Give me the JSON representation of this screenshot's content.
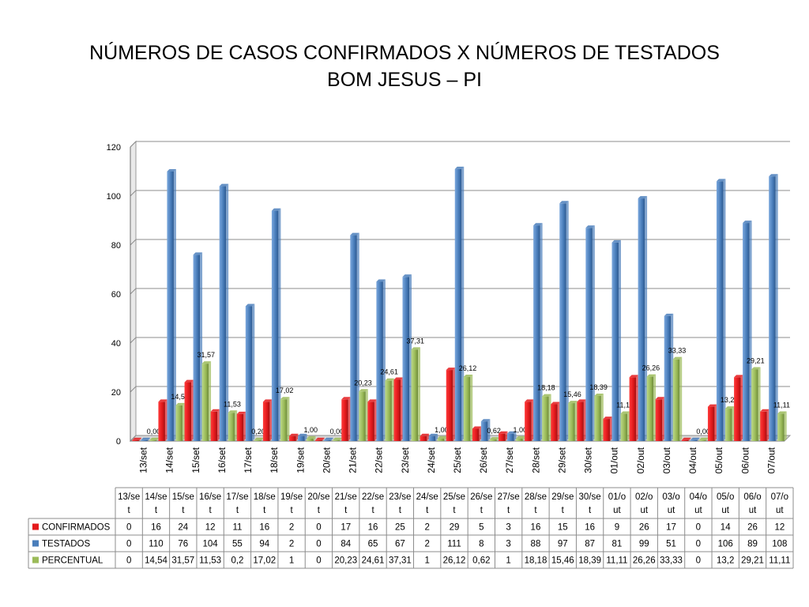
{
  "header": {
    "title_line1": "NÚMEROS DE CASOS CONFIRMADOS X NÚMEROS DE TESTADOS",
    "title_line2": "BOM JESUS – PI"
  },
  "chart_data": {
    "type": "bar",
    "title": "NÚMEROS DE CASOS CONFIRMADOS X NÚMEROS DE TESTADOS BOM JESUS – PI",
    "xlabel": "",
    "ylabel": "",
    "ylim": [
      0,
      120
    ],
    "yticks": [
      0,
      20,
      40,
      60,
      80,
      100,
      120
    ],
    "grid": true,
    "legend": "data-table",
    "categories": [
      "13/set",
      "14/set",
      "15/set",
      "16/set",
      "17/set",
      "18/set",
      "19/set",
      "20/set",
      "21/set",
      "22/set",
      "23/set",
      "24/set",
      "25/set",
      "26/set",
      "27/set",
      "28/set",
      "29/set",
      "30/set",
      "01/out",
      "02/out",
      "03/out",
      "04/out",
      "05/out",
      "06/out",
      "07/out"
    ],
    "table_headers": [
      [
        "13/se",
        "t"
      ],
      [
        "14/se",
        "t"
      ],
      [
        "15/se",
        "t"
      ],
      [
        "16/se",
        "t"
      ],
      [
        "17/se",
        "t"
      ],
      [
        "18/se",
        "t"
      ],
      [
        "19/se",
        "t"
      ],
      [
        "20/se",
        "t"
      ],
      [
        "21/se",
        "t"
      ],
      [
        "22/se",
        "t"
      ],
      [
        "23/se",
        "t"
      ],
      [
        "24/se",
        "t"
      ],
      [
        "25/se",
        "t"
      ],
      [
        "26/se",
        "t"
      ],
      [
        "27/se",
        "t"
      ],
      [
        "28/se",
        "t"
      ],
      [
        "29/se",
        "t"
      ],
      [
        "30/se",
        "t"
      ],
      [
        "01/o",
        "ut"
      ],
      [
        "02/o",
        "ut"
      ],
      [
        "03/o",
        "ut"
      ],
      [
        "04/o",
        "ut"
      ],
      [
        "05/o",
        "ut"
      ],
      [
        "06/o",
        "ut"
      ],
      [
        "07/o",
        "ut"
      ]
    ],
    "series": [
      {
        "name": "CONFIRMADOS",
        "color": "#e41a1c",
        "values": [
          0,
          16,
          24,
          12,
          11,
          16,
          2,
          0,
          17,
          16,
          25,
          2,
          29,
          5,
          3,
          16,
          15,
          16,
          9,
          26,
          17,
          0,
          14,
          26,
          12
        ],
        "table_values": [
          "0",
          "16",
          "24",
          "12",
          "11",
          "16",
          "2",
          "0",
          "17",
          "16",
          "25",
          "2",
          "29",
          "5",
          "3",
          "16",
          "15",
          "16",
          "9",
          "26",
          "17",
          "0",
          "14",
          "26",
          "12"
        ]
      },
      {
        "name": "TESTADOS",
        "color": "#4a7ebb",
        "values": [
          0,
          110,
          76,
          104,
          55,
          94,
          2,
          0,
          84,
          65,
          67,
          2,
          111,
          8,
          3,
          88,
          97,
          87,
          81,
          99,
          51,
          0,
          106,
          89,
          108
        ],
        "table_values": [
          "0",
          "110",
          "76",
          "104",
          "55",
          "94",
          "2",
          "0",
          "84",
          "65",
          "67",
          "2",
          "111",
          "8",
          "3",
          "88",
          "97",
          "87",
          "81",
          "99",
          "51",
          "0",
          "106",
          "89",
          "108"
        ]
      },
      {
        "name": "PERCENTUAL",
        "color": "#9bbb59",
        "values": [
          0,
          14.54,
          31.57,
          11.53,
          0.2,
          17.02,
          1,
          0,
          20.23,
          24.61,
          37.31,
          1,
          26.12,
          0.62,
          1,
          18.18,
          15.46,
          18.39,
          11.11,
          26.26,
          33.33,
          0,
          13.2,
          29.21,
          11.11
        ],
        "data_labels": [
          "0,00",
          "14,54",
          "31,57",
          "11,53",
          "0,20",
          "17,02",
          "1,00",
          "0,00",
          "20,23",
          "24,61",
          "37,31",
          "1,00",
          "26,12",
          "0,62",
          "1,00",
          "18,18",
          "15,46",
          "18,39",
          "11,11",
          "26,26",
          "33,33",
          "0,00",
          "13,20",
          "29,21",
          "11,11"
        ],
        "table_values": [
          "0",
          "14,54",
          "31,57",
          "11,53",
          "0,2",
          "17,02",
          "1",
          "0",
          "20,23",
          "24,61",
          "37,31",
          "1",
          "26,12",
          "0,62",
          "1",
          "18,18",
          "15,46",
          "18,39",
          "11,11",
          "26,26",
          "33,33",
          "0",
          "13,2",
          "29,21",
          "11,11"
        ]
      }
    ]
  }
}
